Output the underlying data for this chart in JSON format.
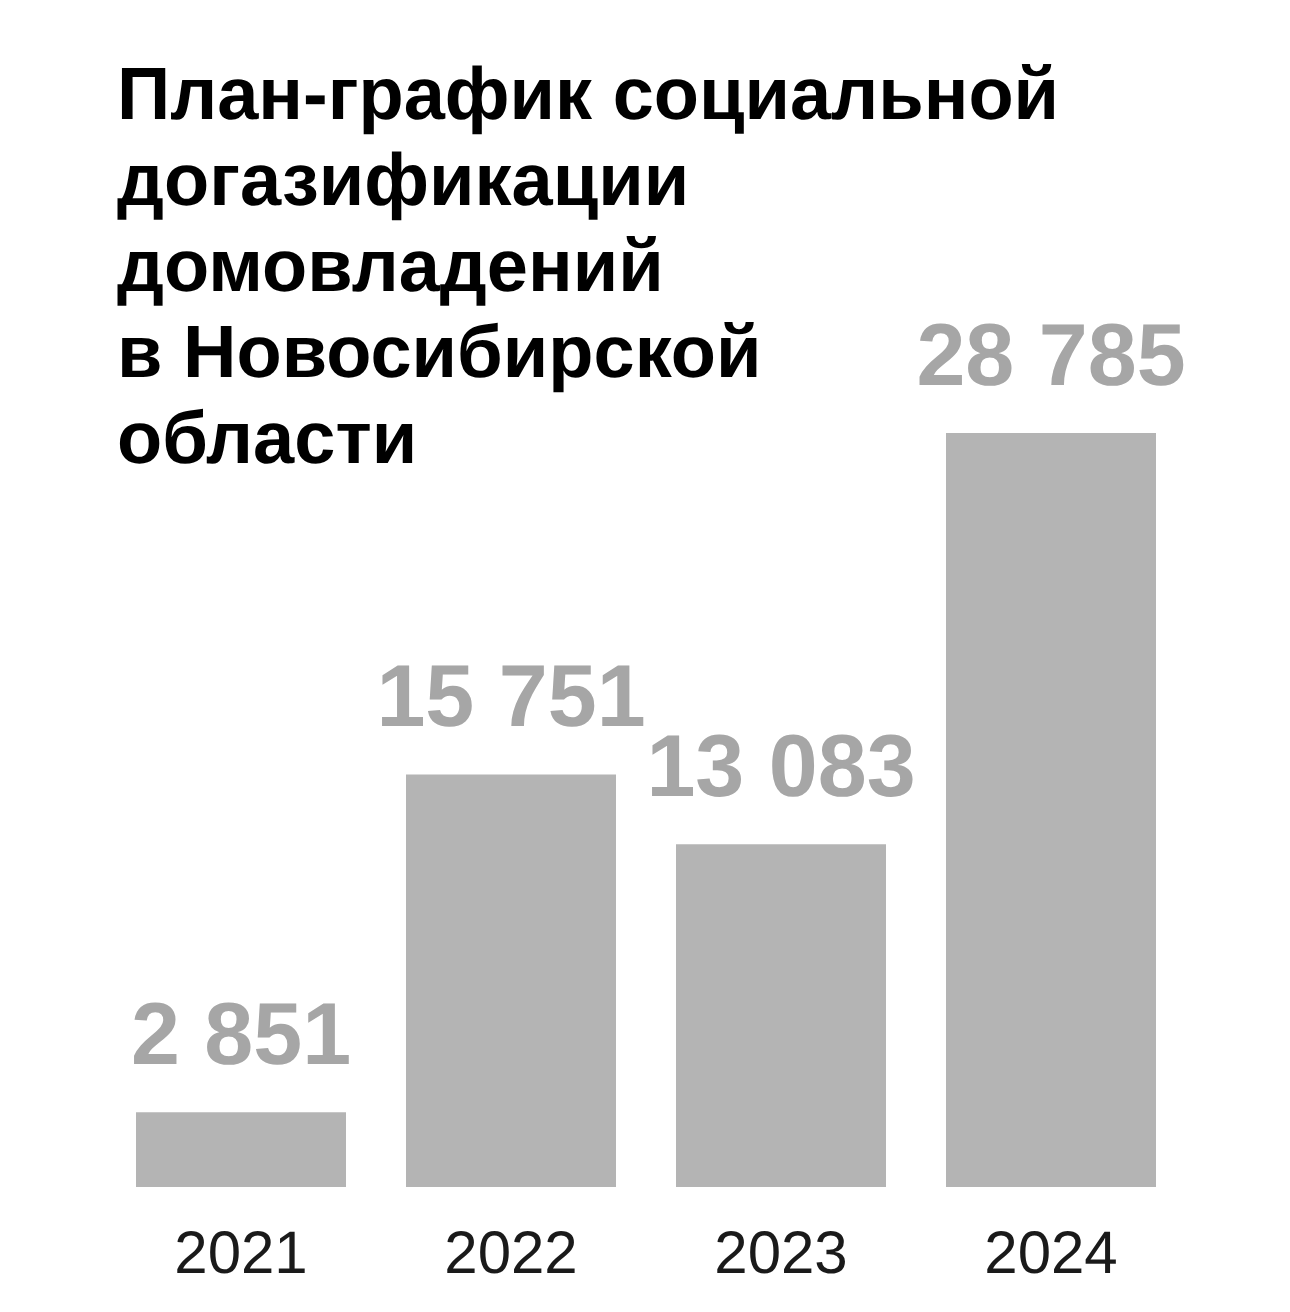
{
  "chart_data": {
    "type": "bar",
    "title": "План-график социальной\nдогазификации\nдомовладений\nв Новосибирской\nобласти",
    "categories": [
      "2021",
      "2022",
      "2023",
      "2024"
    ],
    "values": [
      2851,
      15751,
      13083,
      28785
    ],
    "value_labels": [
      "2 851",
      "15 751",
      "13 083",
      "28 785"
    ],
    "color": "#b4b4b4",
    "grid": false,
    "tick_labels": "x"
  }
}
